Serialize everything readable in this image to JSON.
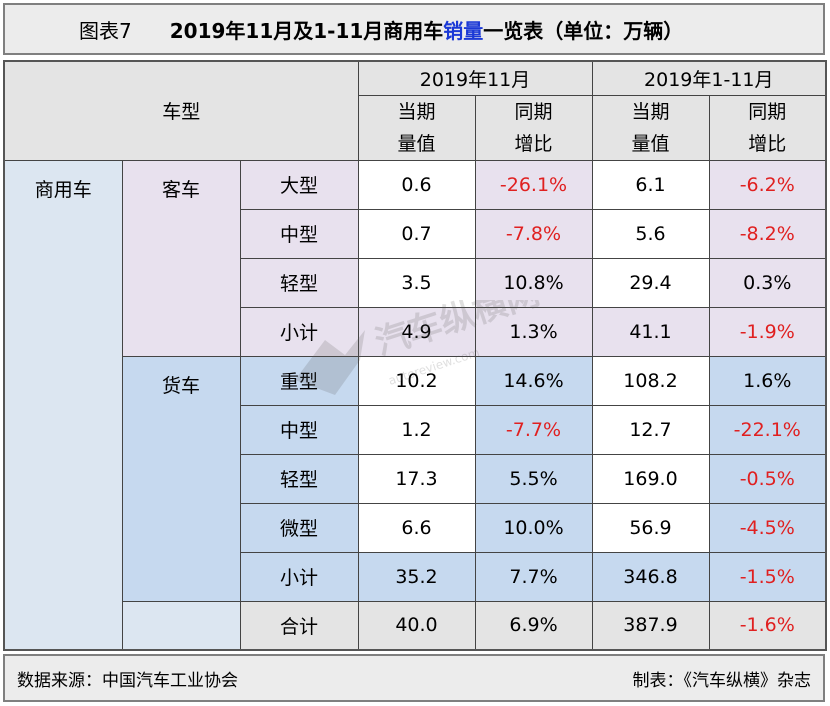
{
  "title": {
    "figure_label": "图表7",
    "main_prefix": "2019年11月及1-11月商用车",
    "main_highlight": "销量",
    "main_suffix": "一览表（单位：万辆）"
  },
  "header": {
    "vehicle_type": "车型",
    "period_month": "2019年11月",
    "period_ytd": "2019年1-11月",
    "cols": [
      {
        "line1": "当期",
        "line2": "量值"
      },
      {
        "line1": "同期",
        "line2": "增比"
      },
      {
        "line1": "当期",
        "line2": "量值"
      },
      {
        "line1": "同期",
        "line2": "增比"
      }
    ]
  },
  "category": "商用车",
  "groups": [
    {
      "name": "客车",
      "rows": [
        {
          "type": "大型",
          "month_val": "0.6",
          "month_yoy": "-26.1%",
          "ytd_val": "6.1",
          "ytd_yoy": "-6.2%"
        },
        {
          "type": "中型",
          "month_val": "0.7",
          "month_yoy": "-7.8%",
          "ytd_val": "5.6",
          "ytd_yoy": "-8.2%"
        },
        {
          "type": "轻型",
          "month_val": "3.5",
          "month_yoy": "10.8%",
          "ytd_val": "29.4",
          "ytd_yoy": "0.3%"
        }
      ],
      "subtotal": {
        "label": "小计",
        "month_val": "4.9",
        "month_yoy": "1.3%",
        "ytd_val": "41.1",
        "ytd_yoy": "-1.9%"
      }
    },
    {
      "name": "货车",
      "rows": [
        {
          "type": "重型",
          "month_val": "10.2",
          "month_yoy": "14.6%",
          "ytd_val": "108.2",
          "ytd_yoy": "1.6%"
        },
        {
          "type": "中型",
          "month_val": "1.2",
          "month_yoy": "-7.7%",
          "ytd_val": "12.7",
          "ytd_yoy": "-22.1%"
        },
        {
          "type": "轻型",
          "month_val": "17.3",
          "month_yoy": "5.5%",
          "ytd_val": "169.0",
          "ytd_yoy": "-0.5%"
        },
        {
          "type": "微型",
          "month_val": "6.6",
          "month_yoy": "10.0%",
          "ytd_val": "56.9",
          "ytd_yoy": "-4.5%"
        }
      ],
      "subtotal": {
        "label": "小计",
        "month_val": "35.2",
        "month_yoy": "7.7%",
        "ytd_val": "346.8",
        "ytd_yoy": "-1.5%"
      }
    }
  ],
  "total": {
    "label": "合计",
    "month_val": "40.0",
    "month_yoy": "6.9%",
    "ytd_val": "387.9",
    "ytd_yoy": "-1.6%"
  },
  "footer": {
    "source": "数据来源：中国汽车工业协会",
    "credit": "制表：《汽车纵横》杂志"
  },
  "watermark": {
    "text": "汽车纵横网",
    "url_text": "autoreview.com"
  },
  "colors": {
    "negative": "#e02020",
    "highlight": "#1b39d6",
    "bus_bg": "#e8e1ee",
    "truck_bg": "#c6d9ef"
  }
}
